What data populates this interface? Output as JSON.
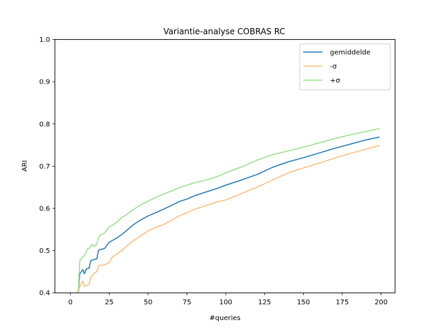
{
  "chart_data": {
    "type": "line",
    "title": "Variantie-analyse COBRAS RC",
    "xlabel": "#queries",
    "ylabel": "ARI",
    "xlim": [
      -10,
      209
    ],
    "ylim": [
      0.4,
      1.0
    ],
    "xticks": [
      0,
      25,
      50,
      75,
      100,
      125,
      150,
      175,
      200
    ],
    "yticks": [
      0.4,
      0.5,
      0.6,
      0.7,
      0.8,
      0.9,
      1.0
    ],
    "xtick_labels": [
      "0",
      "25",
      "50",
      "75",
      "100",
      "125",
      "150",
      "175",
      "200"
    ],
    "ytick_labels": [
      "0.4",
      "0.5",
      "0.6",
      "0.7",
      "0.8",
      "0.9",
      "1.0"
    ],
    "legend_position": "top-right",
    "grid": false,
    "series": [
      {
        "name": "gemiddelde",
        "color": "#1f77b4",
        "x": [
          5,
          6,
          8,
          9,
          10,
          11,
          12,
          13,
          14,
          15,
          16,
          17,
          18,
          19,
          20,
          22,
          25,
          27,
          30,
          33,
          36,
          40,
          45,
          50,
          55,
          60,
          65,
          70,
          75,
          80,
          85,
          90,
          95,
          100,
          110,
          120,
          130,
          140,
          150,
          160,
          170,
          180,
          190,
          199
        ],
        "y": [
          0.4,
          0.445,
          0.455,
          0.445,
          0.455,
          0.458,
          0.458,
          0.475,
          0.478,
          0.478,
          0.48,
          0.48,
          0.5,
          0.503,
          0.503,
          0.505,
          0.52,
          0.524,
          0.53,
          0.538,
          0.547,
          0.56,
          0.572,
          0.582,
          0.59,
          0.598,
          0.607,
          0.616,
          0.622,
          0.63,
          0.636,
          0.642,
          0.648,
          0.655,
          0.667,
          0.68,
          0.697,
          0.71,
          0.72,
          0.731,
          0.742,
          0.752,
          0.762,
          0.769
        ]
      },
      {
        "name": "-σ",
        "color": "#ffbb78",
        "x": [
          5,
          6,
          8,
          9,
          10,
          11,
          12,
          13,
          14,
          15,
          16,
          17,
          18,
          19,
          20,
          22,
          25,
          27,
          30,
          33,
          36,
          40,
          45,
          50,
          55,
          60,
          65,
          70,
          75,
          80,
          85,
          90,
          95,
          100,
          110,
          120,
          130,
          140,
          150,
          160,
          170,
          180,
          190,
          199
        ],
        "y": [
          0.4,
          0.415,
          0.428,
          0.415,
          0.418,
          0.418,
          0.42,
          0.437,
          0.44,
          0.445,
          0.448,
          0.45,
          0.462,
          0.465,
          0.465,
          0.466,
          0.472,
          0.485,
          0.492,
          0.5,
          0.51,
          0.522,
          0.534,
          0.547,
          0.555,
          0.562,
          0.572,
          0.582,
          0.59,
          0.598,
          0.604,
          0.61,
          0.616,
          0.62,
          0.635,
          0.65,
          0.667,
          0.684,
          0.696,
          0.707,
          0.719,
          0.73,
          0.74,
          0.749
        ]
      },
      {
        "name": "+σ",
        "color": "#98df8a",
        "x": [
          5,
          6,
          8,
          9,
          10,
          11,
          12,
          13,
          14,
          15,
          16,
          17,
          18,
          19,
          20,
          22,
          25,
          27,
          30,
          33,
          36,
          40,
          45,
          50,
          55,
          60,
          65,
          70,
          75,
          80,
          85,
          90,
          95,
          100,
          110,
          120,
          130,
          140,
          150,
          160,
          170,
          180,
          190,
          199
        ],
        "y": [
          0.4,
          0.475,
          0.485,
          0.488,
          0.495,
          0.505,
          0.505,
          0.51,
          0.515,
          0.51,
          0.512,
          0.515,
          0.53,
          0.536,
          0.538,
          0.542,
          0.556,
          0.56,
          0.568,
          0.578,
          0.585,
          0.596,
          0.608,
          0.617,
          0.626,
          0.634,
          0.641,
          0.649,
          0.655,
          0.661,
          0.665,
          0.67,
          0.676,
          0.684,
          0.698,
          0.714,
          0.727,
          0.736,
          0.745,
          0.755,
          0.765,
          0.774,
          0.782,
          0.789
        ]
      }
    ]
  }
}
